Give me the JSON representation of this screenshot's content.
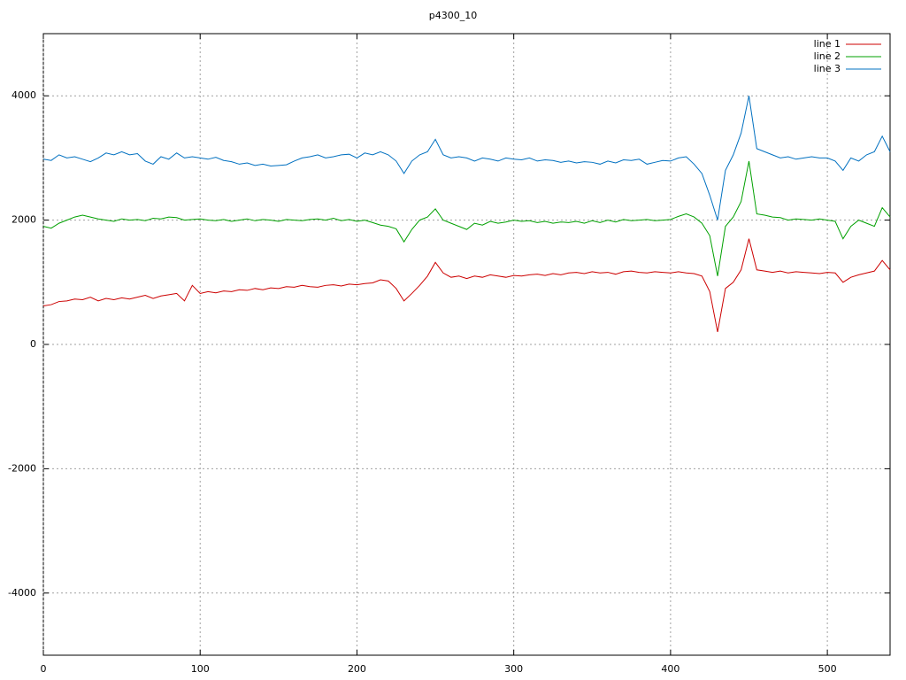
{
  "chart_data": {
    "type": "line",
    "title": "p4300_10",
    "x": [
      0,
      5,
      10,
      15,
      20,
      25,
      30,
      35,
      40,
      45,
      50,
      55,
      60,
      65,
      70,
      75,
      80,
      85,
      90,
      95,
      100,
      105,
      110,
      115,
      120,
      125,
      130,
      135,
      140,
      145,
      150,
      155,
      160,
      165,
      170,
      175,
      180,
      185,
      190,
      195,
      200,
      205,
      210,
      215,
      220,
      225,
      230,
      235,
      240,
      245,
      250,
      255,
      260,
      265,
      270,
      275,
      280,
      285,
      290,
      295,
      300,
      305,
      310,
      315,
      320,
      325,
      330,
      335,
      340,
      345,
      350,
      355,
      360,
      365,
      370,
      375,
      380,
      385,
      390,
      395,
      400,
      405,
      410,
      415,
      420,
      425,
      430,
      435,
      440,
      445,
      450,
      455,
      460,
      465,
      470,
      475,
      480,
      485,
      490,
      495,
      500,
      505,
      510,
      515,
      520,
      525,
      530,
      535,
      540
    ],
    "series": [
      {
        "name": "line 1",
        "color": "#cc0000",
        "values": [
          620,
          640,
          690,
          700,
          730,
          720,
          760,
          700,
          740,
          720,
          750,
          730,
          760,
          790,
          740,
          780,
          800,
          820,
          700,
          950,
          820,
          850,
          830,
          860,
          850,
          880,
          870,
          900,
          880,
          910,
          900,
          930,
          920,
          950,
          930,
          920,
          950,
          960,
          940,
          970,
          960,
          980,
          990,
          1040,
          1020,
          900,
          700,
          820,
          950,
          1100,
          1320,
          1150,
          1080,
          1100,
          1060,
          1100,
          1080,
          1120,
          1100,
          1080,
          1110,
          1100,
          1120,
          1130,
          1110,
          1140,
          1120,
          1150,
          1160,
          1140,
          1170,
          1150,
          1160,
          1130,
          1170,
          1180,
          1160,
          1150,
          1170,
          1160,
          1150,
          1170,
          1150,
          1140,
          1100,
          850,
          200,
          900,
          1000,
          1200,
          1700,
          1200,
          1180,
          1160,
          1180,
          1150,
          1170,
          1160,
          1150,
          1140,
          1160,
          1150,
          1000,
          1080,
          1120,
          1150,
          1180,
          1350,
          1200
        ]
      },
      {
        "name": "line 2",
        "color": "#00a000",
        "values": [
          1900,
          1870,
          1950,
          2000,
          2050,
          2080,
          2050,
          2020,
          2000,
          1980,
          2020,
          2000,
          2010,
          1990,
          2030,
          2020,
          2050,
          2040,
          2000,
          2010,
          2020,
          2000,
          1990,
          2010,
          1980,
          2000,
          2020,
          1990,
          2010,
          2000,
          1980,
          2010,
          2000,
          1990,
          2010,
          2020,
          2000,
          2030,
          1990,
          2010,
          1980,
          2000,
          1960,
          1920,
          1900,
          1860,
          1650,
          1850,
          2000,
          2050,
          2180,
          2000,
          1950,
          1900,
          1850,
          1950,
          1920,
          1980,
          1950,
          1970,
          2000,
          1980,
          1990,
          1960,
          1980,
          1950,
          1970,
          1960,
          1980,
          1950,
          1990,
          1960,
          2000,
          1970,
          2010,
          1990,
          2000,
          2010,
          1990,
          2000,
          2010,
          2060,
          2100,
          2050,
          1950,
          1750,
          1100,
          1900,
          2050,
          2300,
          2950,
          2100,
          2080,
          2050,
          2040,
          2000,
          2020,
          2010,
          2000,
          2020,
          2000,
          1980,
          1700,
          1900,
          2000,
          1950,
          1900,
          2200,
          2050
        ]
      },
      {
        "name": "line 3",
        "color": "#0070c0",
        "values": [
          2980,
          2960,
          3050,
          3000,
          3020,
          2980,
          2940,
          3000,
          3080,
          3050,
          3100,
          3050,
          3070,
          2950,
          2900,
          3020,
          2980,
          3080,
          3000,
          3020,
          3000,
          2980,
          3010,
          2960,
          2940,
          2900,
          2920,
          2880,
          2900,
          2870,
          2880,
          2890,
          2950,
          3000,
          3020,
          3050,
          3000,
          3020,
          3050,
          3060,
          3000,
          3080,
          3050,
          3100,
          3050,
          2950,
          2750,
          2950,
          3050,
          3100,
          3300,
          3050,
          3000,
          3020,
          3000,
          2950,
          3000,
          2980,
          2950,
          3000,
          2980,
          2970,
          3000,
          2950,
          2970,
          2960,
          2930,
          2950,
          2920,
          2940,
          2930,
          2900,
          2950,
          2920,
          2970,
          2960,
          2980,
          2900,
          2930,
          2960,
          2950,
          3000,
          3020,
          2900,
          2750,
          2400,
          2000,
          2800,
          3050,
          3400,
          4000,
          3150,
          3100,
          3050,
          3000,
          3020,
          2980,
          3000,
          3020,
          3000,
          3000,
          2950,
          2800,
          3000,
          2950,
          3050,
          3100,
          3350,
          3100
        ]
      }
    ],
    "xlim": [
      0,
      540
    ],
    "ylim": [
      -5000,
      5000
    ],
    "xticks": [
      0,
      100,
      200,
      300,
      400,
      500
    ],
    "yticks": [
      -4000,
      -2000,
      0,
      2000,
      4000
    ],
    "grid": true,
    "legend": "top-right"
  }
}
